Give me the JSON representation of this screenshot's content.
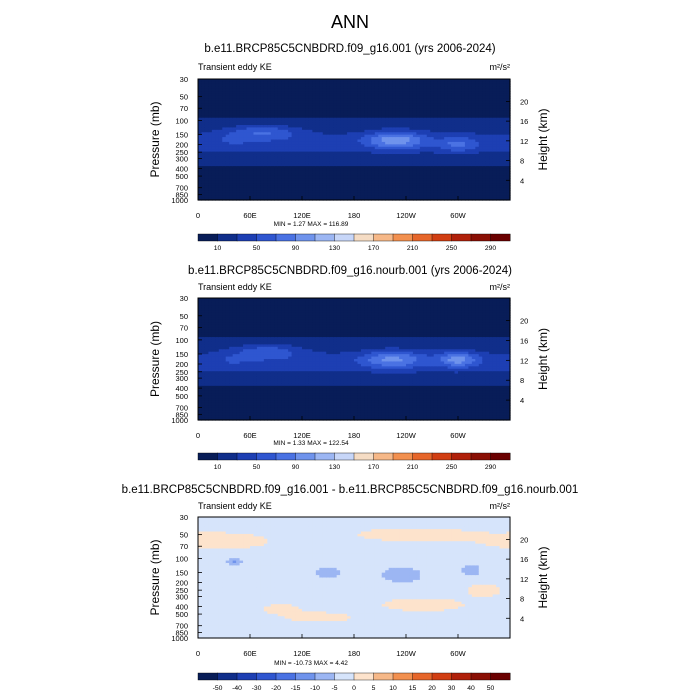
{
  "figure": {
    "title": "ANN"
  },
  "chart_data": [
    {
      "type": "heatmap",
      "title": "b.e11.BRCP85C5CNBDRD.f09_g16.001 (yrs 2006-2024)",
      "subtitle_left": "Transient eddy KE",
      "units": "m²/s²",
      "xlabel": "",
      "ylabel": "Pressure (mb)",
      "y2label": "Height (km)",
      "x_ticks": [
        "0",
        "60E",
        "120E",
        "180",
        "120W",
        "60W"
      ],
      "x_tick_lon": [
        0,
        60,
        120,
        180,
        240,
        300
      ],
      "xlim": [
        0,
        360
      ],
      "y_ticks": [
        "30",
        "50",
        "70",
        "100",
        "150",
        "200",
        "250",
        "300",
        "400",
        "500",
        "700",
        "850",
        "1000"
      ],
      "y_tick_p": [
        30,
        50,
        70,
        100,
        150,
        200,
        250,
        300,
        400,
        500,
        700,
        850,
        1000
      ],
      "ylim": [
        30,
        1000
      ],
      "y_scale": "log-pressure",
      "y2_ticks": [
        "4",
        "8",
        "12",
        "16",
        "20"
      ],
      "y2_tick_km": [
        4,
        8,
        12,
        16,
        20
      ],
      "stats": "MIN =   1.27  MAX = 116.89",
      "colorbar_labels": [
        "10",
        "50",
        "90",
        "130",
        "170",
        "210",
        "250",
        "290"
      ],
      "levels": [
        0,
        10,
        30,
        50,
        70,
        90,
        110,
        130,
        150,
        170,
        190,
        210,
        230,
        250,
        270,
        290
      ],
      "colors": [
        "#081d58",
        "#102e8a",
        "#1d3fb3",
        "#2f56d0",
        "#4a72e3",
        "#6f93ec",
        "#9cb6f3",
        "#c7d6f8",
        "#f5dcc4",
        "#f6b888",
        "#f2904f",
        "#e6662a",
        "#d13e12",
        "#b0200a",
        "#8a0f04",
        "#6a0000"
      ],
      "features": [
        {
          "lon": 75,
          "p": 140,
          "wlon": 40,
          "wp": 0.22,
          "amp": 45
        },
        {
          "lon": 228,
          "p": 175,
          "wlon": 32,
          "wp": 0.25,
          "amp": 72
        },
        {
          "lon": 300,
          "p": 200,
          "wlon": 22,
          "wp": 0.22,
          "amp": 40
        },
        {
          "lon": 40,
          "p": 180,
          "wlon": 22,
          "wp": 0.2,
          "amp": 12
        }
      ],
      "base_pattern": {
        "jet_center_p": 190,
        "jet_width": 0.42,
        "jet_amp": 30,
        "surface_low": 3,
        "top_low": 6
      },
      "min": 1.27,
      "max": 116.89
    },
    {
      "type": "heatmap",
      "title": "b.e11.BRCP85C5CNBDRD.f09_g16.nourb.001 (yrs 2006-2024)",
      "subtitle_left": "Transient eddy KE",
      "units": "m²/s²",
      "xlabel": "",
      "ylabel": "Pressure (mb)",
      "y2label": "Height (km)",
      "x_ticks": [
        "0",
        "60E",
        "120E",
        "180",
        "120W",
        "60W"
      ],
      "x_tick_lon": [
        0,
        60,
        120,
        180,
        240,
        300
      ],
      "xlim": [
        0,
        360
      ],
      "y_ticks": [
        "30",
        "50",
        "70",
        "100",
        "150",
        "200",
        "250",
        "300",
        "400",
        "500",
        "700",
        "850",
        "1000"
      ],
      "y_tick_p": [
        30,
        50,
        70,
        100,
        150,
        200,
        250,
        300,
        400,
        500,
        700,
        850,
        1000
      ],
      "ylim": [
        30,
        1000
      ],
      "y_scale": "log-pressure",
      "y2_ticks": [
        "4",
        "8",
        "12",
        "16",
        "20"
      ],
      "y2_tick_km": [
        4,
        8,
        12,
        16,
        20
      ],
      "stats": "MIN =   1.33  MAX = 122.54",
      "colorbar_labels": [
        "10",
        "50",
        "90",
        "130",
        "170",
        "210",
        "250",
        "290"
      ],
      "levels": [
        0,
        10,
        30,
        50,
        70,
        90,
        110,
        130,
        150,
        170,
        190,
        210,
        230,
        250,
        270,
        290
      ],
      "colors": [
        "#081d58",
        "#102e8a",
        "#1d3fb3",
        "#2f56d0",
        "#4a72e3",
        "#6f93ec",
        "#9cb6f3",
        "#c7d6f8",
        "#f5dcc4",
        "#f6b888",
        "#f2904f",
        "#e6662a",
        "#d13e12",
        "#b0200a",
        "#8a0f04",
        "#6a0000"
      ],
      "features": [
        {
          "lon": 80,
          "p": 140,
          "wlon": 38,
          "wp": 0.22,
          "amp": 42
        },
        {
          "lon": 225,
          "p": 175,
          "wlon": 35,
          "wp": 0.25,
          "amp": 60
        },
        {
          "lon": 300,
          "p": 175,
          "wlon": 22,
          "wp": 0.22,
          "amp": 65
        },
        {
          "lon": 40,
          "p": 180,
          "wlon": 22,
          "wp": 0.2,
          "amp": 12
        }
      ],
      "base_pattern": {
        "jet_center_p": 190,
        "jet_width": 0.42,
        "jet_amp": 30,
        "surface_low": 3,
        "top_low": 6
      },
      "min": 1.33,
      "max": 122.54
    },
    {
      "type": "heatmap",
      "title": "b.e11.BRCP85C5CNBDRD.f09_g16.001 - b.e11.BRCP85C5CNBDRD.f09_g16.nourb.001",
      "subtitle_left": "Transient eddy KE",
      "units": "m²/s²",
      "xlabel": "",
      "ylabel": "Pressure (mb)",
      "y2label": "Height (km)",
      "x_ticks": [
        "0",
        "60E",
        "120E",
        "180",
        "120W",
        "60W"
      ],
      "x_tick_lon": [
        0,
        60,
        120,
        180,
        240,
        300
      ],
      "xlim": [
        0,
        360
      ],
      "y_ticks": [
        "30",
        "50",
        "70",
        "100",
        "150",
        "200",
        "250",
        "300",
        "400",
        "500",
        "700",
        "850",
        "1000"
      ],
      "y_tick_p": [
        30,
        50,
        70,
        100,
        150,
        200,
        250,
        300,
        400,
        500,
        700,
        850,
        1000
      ],
      "ylim": [
        30,
        1000
      ],
      "y_scale": "log-pressure",
      "y2_ticks": [
        "4",
        "8",
        "12",
        "16",
        "20"
      ],
      "y2_tick_km": [
        4,
        8,
        12,
        16,
        20
      ],
      "stats": "MIN = -10.73  MAX =   4.42",
      "colorbar_labels": [
        "-50",
        "-40",
        "-30",
        "-20",
        "-15",
        "-10",
        "-5",
        "0",
        "5",
        "10",
        "15",
        "20",
        "30",
        "40",
        "50"
      ],
      "levels": [
        -60,
        -50,
        -40,
        -30,
        -20,
        -15,
        -10,
        -5,
        0,
        5,
        10,
        15,
        20,
        30,
        40,
        50,
        60
      ],
      "colors": [
        "#081d58",
        "#102e8a",
        "#1d3fb3",
        "#2f56d0",
        "#4a72e3",
        "#6f93ec",
        "#9cb6f3",
        "#d6e4fb",
        "#fde3cc",
        "#f6b888",
        "#f2904f",
        "#e6662a",
        "#d13e12",
        "#b0200a",
        "#8a0f04",
        "#6a0000"
      ],
      "features": [
        {
          "lon": 42,
          "p": 110,
          "wlon": 8,
          "wp": 0.12,
          "amp": -8
        },
        {
          "lon": 150,
          "p": 150,
          "wlon": 14,
          "wp": 0.15,
          "amp": -7
        },
        {
          "lon": 235,
          "p": 160,
          "wlon": 22,
          "wp": 0.22,
          "amp": -7
        },
        {
          "lon": 315,
          "p": 140,
          "wlon": 10,
          "wp": 0.15,
          "amp": -7
        },
        {
          "lon": 25,
          "p": 60,
          "wlon": 60,
          "wp": 0.25,
          "amp": 6
        },
        {
          "lon": 250,
          "p": 50,
          "wlon": 70,
          "wp": 0.2,
          "amp": 6
        },
        {
          "lon": 260,
          "p": 380,
          "wlon": 50,
          "wp": 0.2,
          "amp": 6
        },
        {
          "lon": 140,
          "p": 550,
          "wlon": 40,
          "wp": 0.15,
          "amp": 6
        },
        {
          "lon": 330,
          "p": 250,
          "wlon": 20,
          "wp": 0.2,
          "amp": 6
        },
        {
          "lon": 95,
          "p": 430,
          "wlon": 25,
          "wp": 0.15,
          "amp": 5
        }
      ],
      "base_pattern": {
        "jet_center_p": 190,
        "jet_width": 0.42,
        "jet_amp": 0,
        "surface_low": 0,
        "top_low": 0,
        "offset": -2.5
      },
      "min": -10.73,
      "max": 4.42
    }
  ]
}
